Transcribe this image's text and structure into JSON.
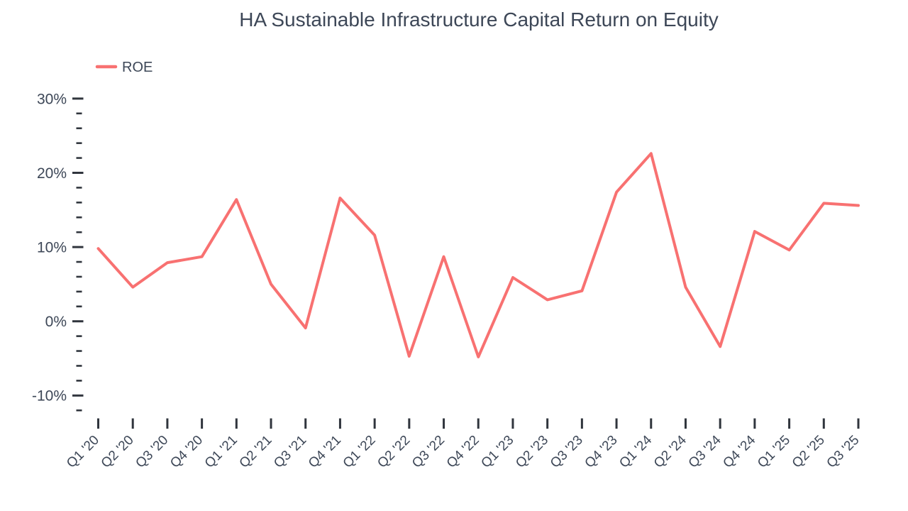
{
  "title": "HA Sustainable Infrastructure Capital Return on Equity",
  "legend": {
    "label": "ROE"
  },
  "colors": {
    "line": "#f87171",
    "text": "#3d4757",
    "tick": "#30353d",
    "background": "#ffffff"
  },
  "chart_data": {
    "type": "line",
    "title": "HA Sustainable Infrastructure Capital Return on Equity",
    "categories": [
      "Q1 '20",
      "Q2 '20",
      "Q3 '20",
      "Q4 '20",
      "Q1 '21",
      "Q2 '21",
      "Q3 '21",
      "Q4 '21",
      "Q1 '22",
      "Q2 '22",
      "Q3 '22",
      "Q4 '22",
      "Q1 '23",
      "Q2 '23",
      "Q3 '23",
      "Q4 '23",
      "Q1 '24",
      "Q2 '24",
      "Q3 '24",
      "Q4 '24",
      "Q1 '25",
      "Q2 '25",
      "Q3 '25"
    ],
    "series": [
      {
        "name": "ROE",
        "values": [
          9.8,
          4.6,
          7.9,
          8.7,
          16.4,
          5.0,
          -0.9,
          16.6,
          11.6,
          -4.7,
          8.7,
          -4.8,
          5.9,
          2.9,
          4.1,
          17.4,
          22.6,
          4.6,
          -3.4,
          12.1,
          9.6,
          15.9,
          15.6
        ]
      }
    ],
    "unit": "%",
    "xlabel": "",
    "ylabel": "",
    "ylim": [
      -12,
      30
    ],
    "y_major_ticks": [
      30,
      20,
      10,
      0,
      -10
    ],
    "y_major_tick_labels": [
      "30%",
      "20%",
      "10%",
      "0%",
      "-10%"
    ],
    "y_minor_tick_step": 2,
    "grid": false,
    "legend_position": "top-left"
  }
}
